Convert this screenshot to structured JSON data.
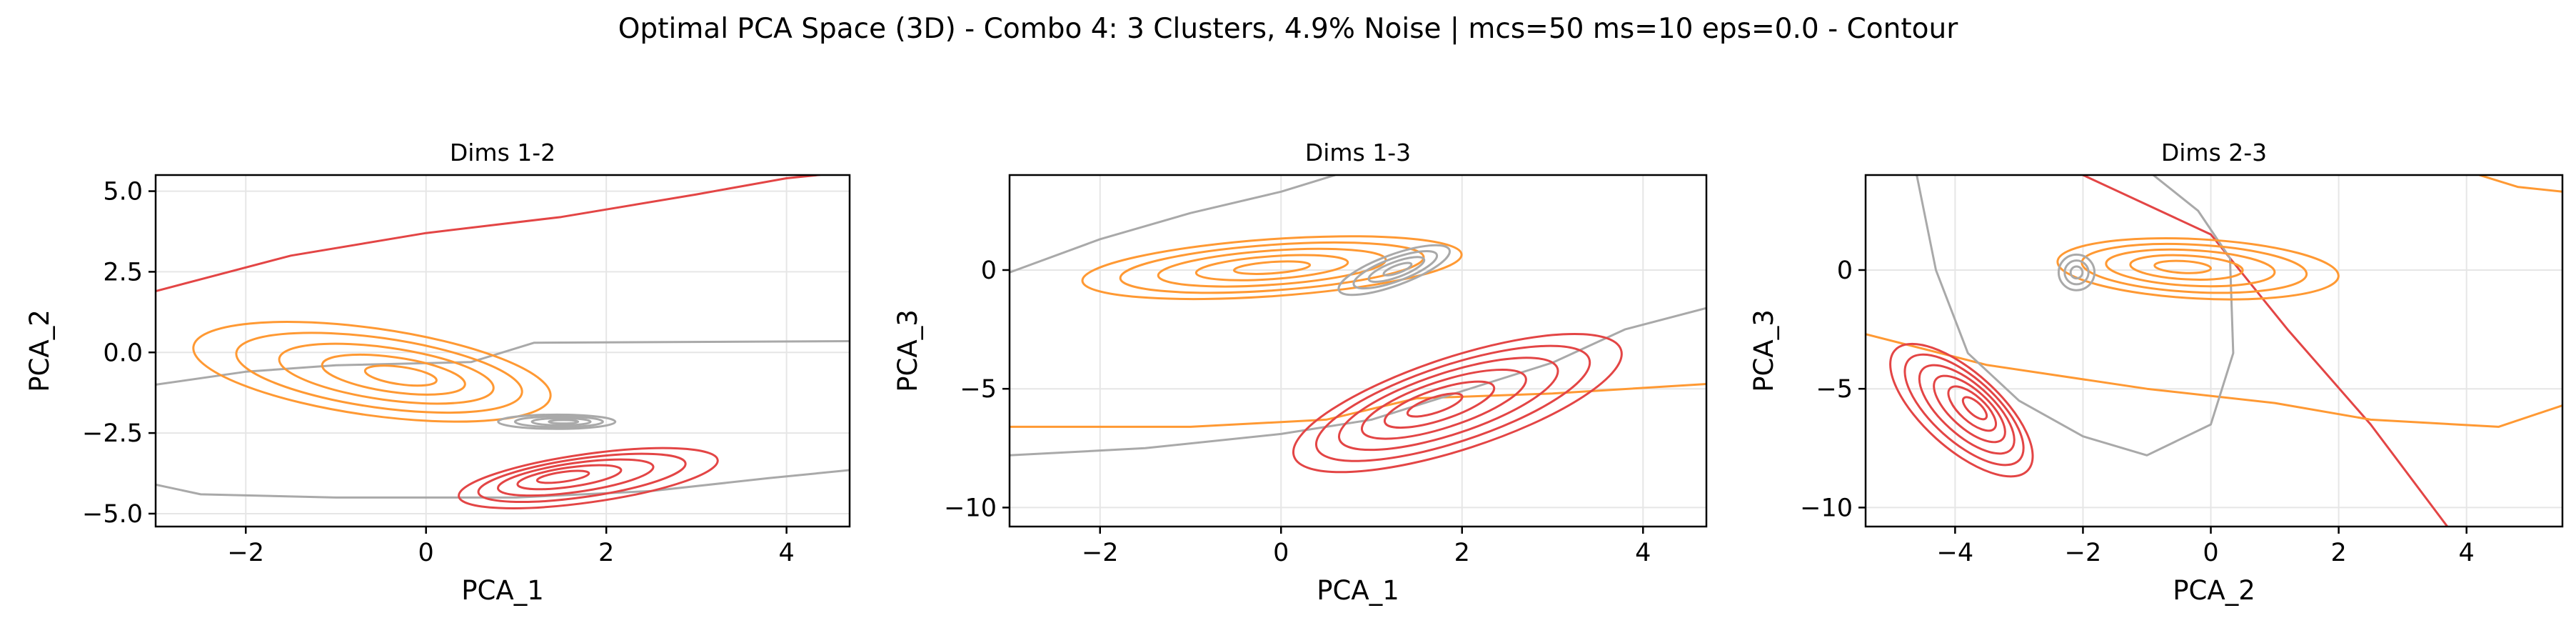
{
  "suptitle": "Optimal PCA Space (3D) - Combo 4: 3 Clusters, 4.9% Noise | mcs=50 ms=10 eps=0.0 - Contour",
  "colors": {
    "orange": "#ff9933",
    "red": "#e34545",
    "gray": "#a9a9a9",
    "grid": "#e6e6e6",
    "axis": "#000000"
  },
  "chart_data": [
    {
      "type": "contour",
      "title": "Dims 1-2",
      "xlabel": "PCA_1",
      "ylabel": "PCA_2",
      "xlim": [
        -3.0,
        4.7
      ],
      "ylim": [
        -5.4,
        5.5
      ],
      "xticks": [
        -2,
        0,
        2,
        4
      ],
      "yticks": [
        -5.0,
        -2.5,
        0.0,
        2.5,
        5.0
      ],
      "xtick_labels": [
        "−2",
        "0",
        "2",
        "4"
      ],
      "ytick_labels": [
        "−5.0",
        "−2.5",
        "0.0",
        "2.5",
        "5.0"
      ],
      "grid": true,
      "clusters": [
        {
          "name": "orange cluster",
          "color": "orange",
          "levels": 5,
          "center": [
            -0.6,
            -0.6
          ],
          "rx": 2.0,
          "ry": 1.35,
          "rot": -8,
          "shift": [
            0.4,
            -0.15
          ]
        },
        {
          "name": "gray cluster",
          "color": "gray",
          "levels": 4,
          "center": [
            1.45,
            -2.15
          ],
          "rx": 0.65,
          "ry": 0.22,
          "rot": 0,
          "shift": [
            0.1,
            0.0
          ]
        },
        {
          "name": "red cluster",
          "color": "red",
          "levels": 5,
          "center": [
            1.8,
            -3.9
          ],
          "rx": 1.45,
          "ry": 0.75,
          "rot": 8,
          "shift": [
            -0.35,
            0.05
          ]
        }
      ],
      "boundaries": [
        {
          "name": "red boundary",
          "color": "red",
          "points": [
            [
              -3.0,
              1.9
            ],
            [
              -1.5,
              3.0
            ],
            [
              0.0,
              3.7
            ],
            [
              1.5,
              4.2
            ],
            [
              3.0,
              4.9
            ],
            [
              4.0,
              5.4
            ],
            [
              4.7,
              5.6
            ]
          ]
        },
        {
          "name": "gray upper boundary",
          "color": "gray",
          "points": [
            [
              -3.0,
              -1.0
            ],
            [
              -2.0,
              -0.6
            ],
            [
              -1.0,
              -0.4
            ],
            [
              0.5,
              -0.3
            ],
            [
              1.2,
              0.3
            ],
            [
              4.7,
              0.35
            ]
          ]
        },
        {
          "name": "gray lower boundary",
          "color": "gray",
          "points": [
            [
              -3.0,
              -4.1
            ],
            [
              -2.5,
              -4.4
            ],
            [
              -1.0,
              -4.5
            ],
            [
              1.0,
              -4.5
            ],
            [
              2.5,
              -4.3
            ],
            [
              3.8,
              -3.9
            ],
            [
              4.7,
              -3.65
            ]
          ]
        }
      ]
    },
    {
      "type": "contour",
      "title": "Dims 1-3",
      "xlabel": "PCA_1",
      "ylabel": "PCA_3",
      "xlim": [
        -3.0,
        4.7
      ],
      "ylim": [
        -10.8,
        4.0
      ],
      "xticks": [
        -2,
        0,
        2,
        4
      ],
      "yticks": [
        -10,
        -5,
        0
      ],
      "xtick_labels": [
        "−2",
        "0",
        "2",
        "4"
      ],
      "ytick_labels": [
        "−10",
        "−5",
        "0"
      ],
      "grid": true,
      "clusters": [
        {
          "name": "orange cluster",
          "color": "orange",
          "levels": 5,
          "center": [
            -0.1,
            0.1
          ],
          "rx": 2.1,
          "ry": 1.2,
          "rot": 4,
          "shift": [
            0.0,
            0.0
          ]
        },
        {
          "name": "gray cluster",
          "color": "gray",
          "levels": 4,
          "center": [
            1.25,
            0.0
          ],
          "rx": 0.65,
          "ry": 0.65,
          "rot": 20,
          "shift": [
            0.05,
            0.05
          ]
        },
        {
          "name": "red cluster",
          "color": "red",
          "levels": 6,
          "center": [
            1.95,
            -5.6
          ],
          "rx": 1.9,
          "ry": 1.95,
          "rot": 18,
          "shift": [
            -0.3,
            -0.1
          ]
        }
      ],
      "boundaries": [
        {
          "name": "gray upper boundary",
          "color": "gray",
          "points": [
            [
              -3.0,
              -0.1
            ],
            [
              -2.0,
              1.3
            ],
            [
              -1.0,
              2.4
            ],
            [
              0.0,
              3.3
            ],
            [
              0.6,
              4.0
            ]
          ]
        },
        {
          "name": "orange boundary",
          "color": "orange",
          "points": [
            [
              -3.0,
              -6.6
            ],
            [
              -1.0,
              -6.6
            ],
            [
              0.5,
              -6.3
            ],
            [
              1.5,
              -5.4
            ],
            [
              3.0,
              -5.2
            ],
            [
              4.7,
              -4.8
            ]
          ]
        },
        {
          "name": "gray lower boundary",
          "color": "gray",
          "points": [
            [
              -3.0,
              -7.8
            ],
            [
              -1.5,
              -7.5
            ],
            [
              0.0,
              -6.9
            ],
            [
              1.0,
              -6.3
            ],
            [
              2.0,
              -5.1
            ],
            [
              3.0,
              -3.9
            ],
            [
              3.8,
              -2.5
            ],
            [
              4.7,
              -1.6
            ]
          ]
        }
      ]
    },
    {
      "type": "contour",
      "title": "Dims 2-3",
      "xlabel": "PCA_2",
      "ylabel": "PCA_3",
      "xlim": [
        -5.4,
        5.5
      ],
      "ylim": [
        -10.8,
        4.0
      ],
      "xticks": [
        -4,
        -2,
        0,
        2,
        4
      ],
      "yticks": [
        -10,
        -5,
        0
      ],
      "xtick_labels": [
        "−4",
        "−2",
        "0",
        "2",
        "4"
      ],
      "ytick_labels": [
        "−10",
        "−5",
        "0"
      ],
      "grid": true,
      "clusters": [
        {
          "name": "orange cluster",
          "color": "orange",
          "levels": 5,
          "center": [
            -0.2,
            0.05
          ],
          "rx": 2.2,
          "ry": 1.25,
          "rot": -3,
          "shift": [
            -0.3,
            0.1
          ]
        },
        {
          "name": "gray cluster",
          "color": "gray",
          "levels": 3,
          "center": [
            -2.1,
            -0.1
          ],
          "rx": 0.28,
          "ry": 0.75,
          "rot": 0,
          "shift": [
            0.0,
            0.0
          ]
        },
        {
          "name": "red cluster",
          "color": "red",
          "levels": 6,
          "center": [
            -3.9,
            -5.9
          ],
          "rx": 1.4,
          "ry": 1.6,
          "rot": -42,
          "shift": [
            0.25,
            0.1
          ]
        }
      ],
      "boundaries": [
        {
          "name": "red boundary",
          "color": "red",
          "points": [
            [
              -2.0,
              4.0
            ],
            [
              0.0,
              1.5
            ],
            [
              1.2,
              -2.5
            ],
            [
              2.5,
              -6.5
            ],
            [
              3.7,
              -10.8
            ]
          ]
        },
        {
          "name": "orange upper boundary",
          "color": "orange",
          "points": [
            [
              4.2,
              4.0
            ],
            [
              4.8,
              3.5
            ],
            [
              5.5,
              3.3
            ]
          ]
        },
        {
          "name": "orange lower boundary",
          "color": "orange",
          "points": [
            [
              -5.4,
              -2.7
            ],
            [
              -3.5,
              -4.0
            ],
            [
              -1.0,
              -5.0
            ],
            [
              1.0,
              -5.6
            ],
            [
              2.5,
              -6.3
            ],
            [
              4.5,
              -6.6
            ],
            [
              5.5,
              -5.7
            ]
          ]
        },
        {
          "name": "gray boundary",
          "color": "gray",
          "points": [
            [
              -4.6,
              4.0
            ],
            [
              -4.3,
              0.0
            ],
            [
              -3.8,
              -3.5
            ],
            [
              -3.0,
              -5.5
            ],
            [
              -2.0,
              -7.0
            ],
            [
              -1.0,
              -7.8
            ],
            [
              0.0,
              -6.5
            ],
            [
              0.35,
              -3.5
            ],
            [
              0.3,
              0.5
            ],
            [
              -0.2,
              2.5
            ],
            [
              -0.9,
              4.0
            ]
          ]
        }
      ]
    }
  ]
}
